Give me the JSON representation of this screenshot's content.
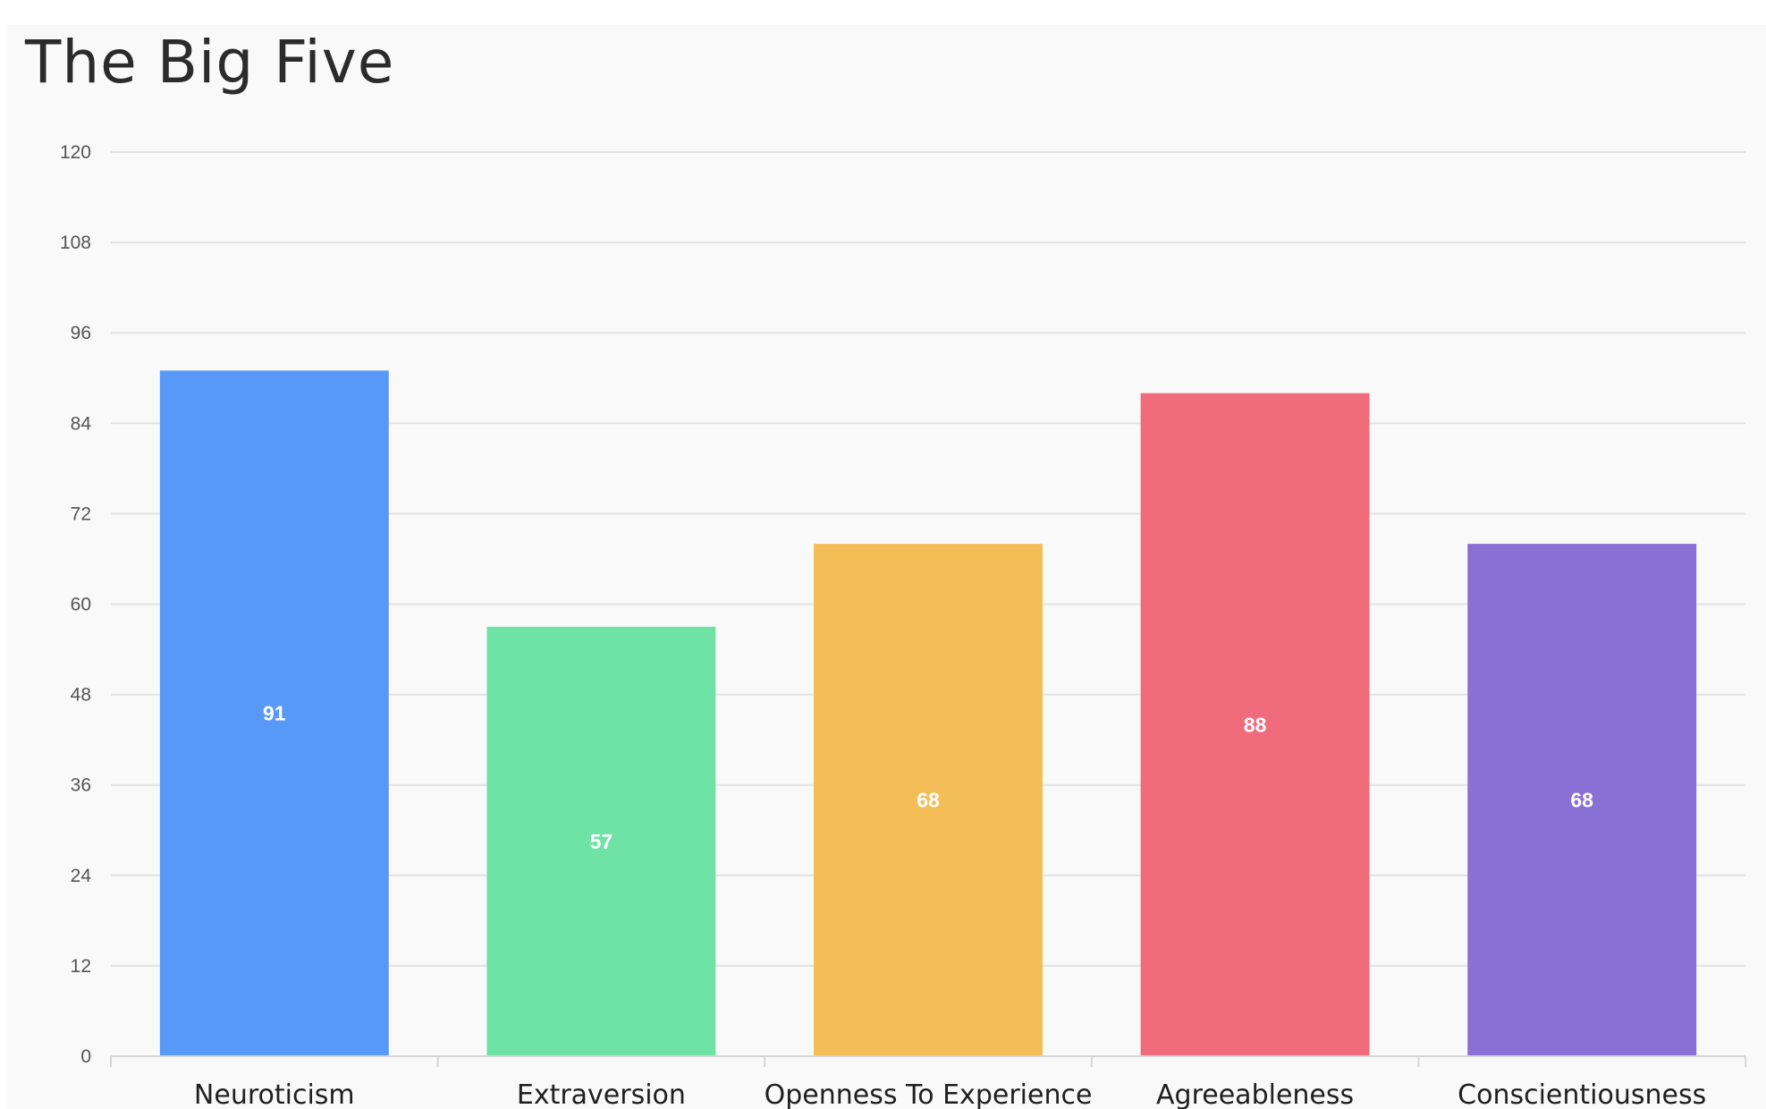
{
  "chart_data": {
    "type": "bar",
    "title": "The Big Five",
    "categories": [
      "Neuroticism",
      "Extraversion",
      "Openness To Experience",
      "Agreeableness",
      "Conscientiousness"
    ],
    "values": [
      91,
      57,
      68,
      88,
      68
    ],
    "data_labels": [
      "91",
      "57",
      "68",
      "88",
      "68"
    ],
    "colors": [
      "#5899f7",
      "#6fe3a5",
      "#f3be57",
      "#f06b7b",
      "#8a70d5"
    ],
    "ylim": [
      0,
      120
    ],
    "yticks": [
      0,
      12,
      24,
      36,
      48,
      60,
      72,
      84,
      96,
      108,
      120
    ],
    "xlabel": "",
    "ylabel": "",
    "grid": true,
    "legend": "none"
  }
}
